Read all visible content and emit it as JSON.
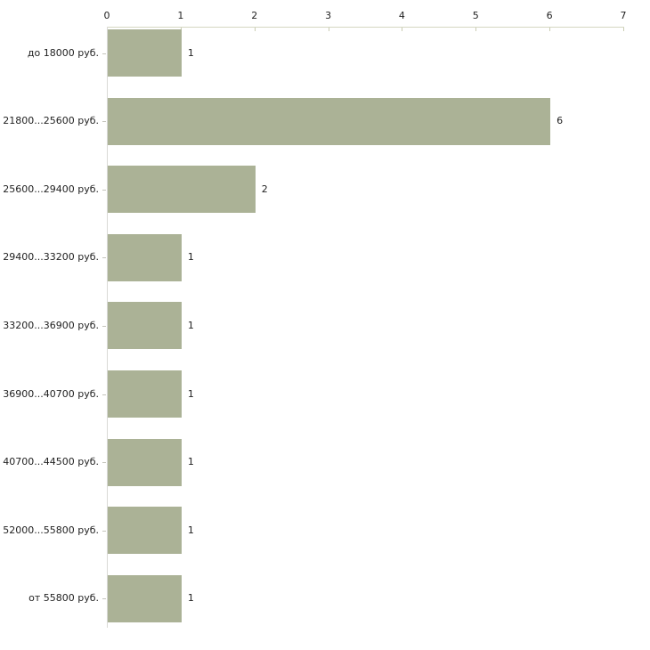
{
  "chart_data": {
    "type": "bar",
    "orientation": "horizontal",
    "title": "",
    "xlabel": "",
    "ylabel": "",
    "categories": [
      "до 18000 руб.",
      "21800...25600 руб.",
      "25600...29400 руб.",
      "29400...33200 руб.",
      "33200...36900 руб.",
      "36900...40700 руб.",
      "40700...44500 руб.",
      "52000...55800 руб.",
      "от 55800 руб."
    ],
    "values": [
      1,
      6,
      2,
      1,
      1,
      1,
      1,
      1,
      1
    ],
    "value_labels": [
      "1",
      "6",
      "2",
      "1",
      "1",
      "1",
      "1",
      "1",
      "1"
    ],
    "x_ticks": [
      0,
      1,
      2,
      3,
      4,
      5,
      6,
      7
    ],
    "xlim": [
      0,
      7
    ],
    "grid": false,
    "legend": false,
    "axis_position": "top",
    "colors": {
      "bar_fill": "#abb296",
      "x_axis_line": "#d4d7c2",
      "x_tick_mark": "#c9ccb2",
      "y_axis_line": "#d9d9d6",
      "category_tick_mark": "#c4c4bc",
      "text": "#222222",
      "background": "#ffffff"
    }
  }
}
